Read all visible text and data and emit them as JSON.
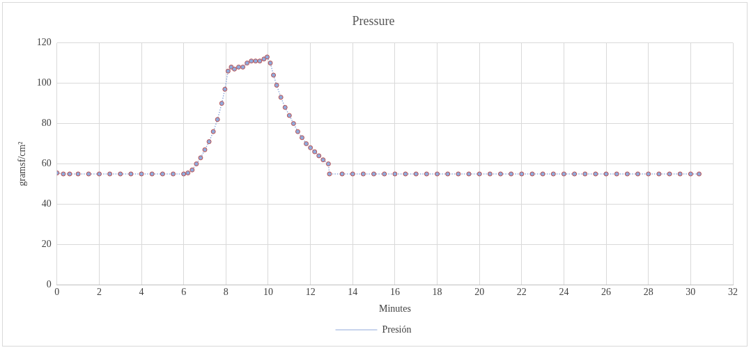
{
  "chart_data": {
    "type": "line",
    "title": "Pressure",
    "xlabel": "Minutes",
    "ylabel": "gramsf/cm²",
    "xlim": [
      0,
      32
    ],
    "xticks": [
      0,
      2,
      4,
      6,
      8,
      10,
      12,
      14,
      16,
      18,
      20,
      22,
      24,
      26,
      28,
      30,
      32
    ],
    "ylim": [
      0,
      120
    ],
    "yticks": [
      0,
      20,
      40,
      60,
      80,
      100,
      120
    ],
    "grid": true,
    "legend": "bottom",
    "marker": "circle",
    "line_style": "dotted",
    "x": [
      0,
      0.3,
      0.6,
      1,
      1.5,
      2,
      2.5,
      3,
      3.5,
      4,
      4.5,
      5,
      5.5,
      6,
      6.2,
      6.4,
      6.6,
      6.8,
      7,
      7.2,
      7.4,
      7.6,
      7.8,
      7.95,
      8.1,
      8.25,
      8.4,
      8.6,
      8.8,
      9,
      9.2,
      9.4,
      9.6,
      9.8,
      9.95,
      10.1,
      10.25,
      10.4,
      10.6,
      10.8,
      11,
      11.2,
      11.4,
      11.6,
      11.8,
      12,
      12.2,
      12.4,
      12.6,
      12.85,
      12.9,
      13.5,
      14,
      14.5,
      15,
      15.5,
      16,
      16.5,
      17,
      17.5,
      18,
      18.5,
      19,
      19.5,
      20,
      20.5,
      21,
      21.5,
      22,
      22.5,
      23,
      23.5,
      24,
      24.5,
      25,
      25.5,
      26,
      26.5,
      27,
      27.5,
      28,
      28.5,
      29,
      29.5,
      30,
      30.4
    ],
    "series": [
      {
        "name": "Presión",
        "color": "#8faadc",
        "values": [
          55.5,
          55,
          55,
          55,
          55,
          55,
          55,
          55,
          55,
          55,
          55,
          55,
          55,
          55,
          55.5,
          57,
          60,
          63,
          67,
          71,
          76,
          82,
          90,
          97,
          106,
          108,
          107,
          108,
          108,
          110,
          111,
          111,
          111,
          112,
          113,
          110,
          104,
          99,
          93,
          88,
          84,
          80,
          76,
          73,
          70,
          68,
          66,
          64,
          62,
          60,
          55,
          55,
          55,
          55,
          55,
          55,
          55,
          55,
          55,
          55,
          55,
          55,
          55,
          55,
          55,
          55,
          55,
          55,
          55,
          55,
          55,
          55,
          55,
          55,
          55,
          55,
          55,
          55,
          55,
          55,
          55,
          55,
          55,
          55,
          55,
          55
        ]
      }
    ]
  }
}
